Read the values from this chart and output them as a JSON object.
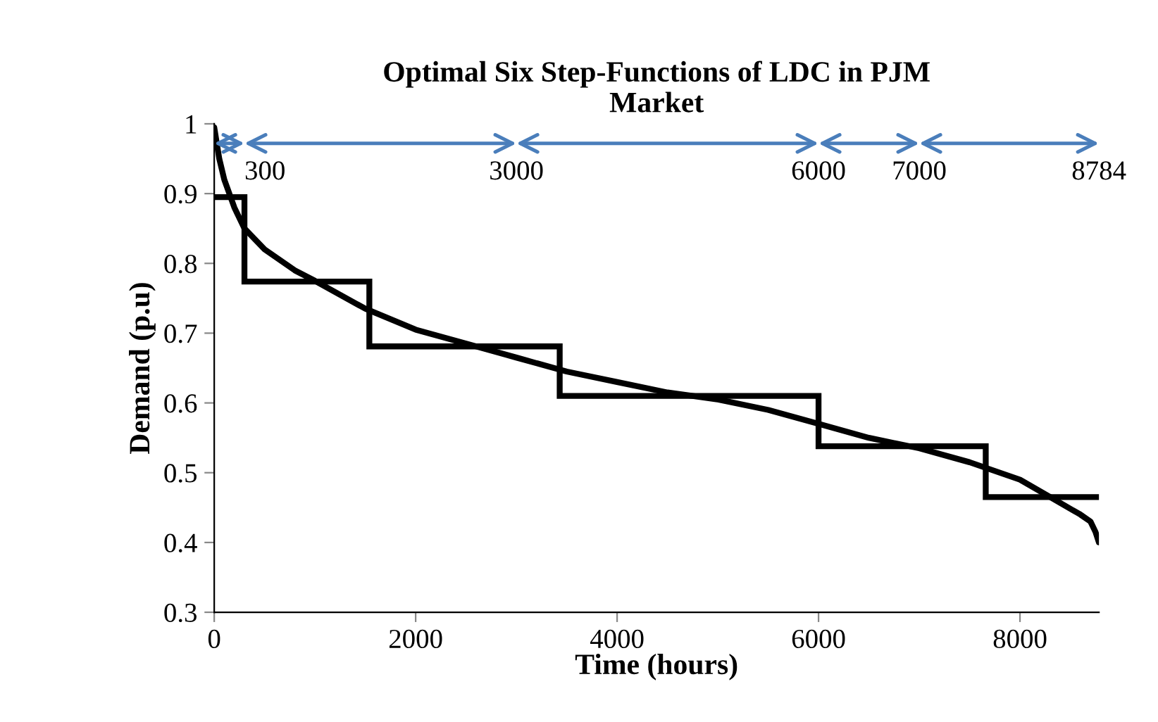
{
  "chart_data": {
    "type": "line",
    "title": "Optimal Six Step-Functions of LDC in PJM\nMarket",
    "xlabel": "Time (hours)",
    "ylabel": "Demand (p.u)",
    "xlim": [
      0,
      8784
    ],
    "xticks": [
      0,
      2000,
      4000,
      6000,
      8000
    ],
    "ylim": [
      0.3,
      1
    ],
    "yticks": [
      0.3,
      0.4,
      0.5,
      0.6,
      0.7,
      0.8,
      0.9,
      1
    ],
    "grid": false,
    "legend": false,
    "series": [
      {
        "color": "#000000",
        "x": [
          0,
          50,
          100,
          200,
          300,
          500,
          800,
          1000,
          1500,
          2000,
          2500,
          3000,
          3500,
          4000,
          4500,
          5000,
          5500,
          6000,
          6500,
          7000,
          7500,
          8000,
          8300,
          8600,
          8700,
          8750,
          8784
        ],
        "values": [
          0.995,
          0.95,
          0.92,
          0.88,
          0.85,
          0.82,
          0.79,
          0.775,
          0.735,
          0.705,
          0.685,
          0.665,
          0.645,
          0.63,
          0.615,
          0.605,
          0.59,
          0.57,
          0.55,
          0.535,
          0.515,
          0.49,
          0.465,
          0.44,
          0.43,
          0.415,
          0.4
        ]
      },
      {
        "type": "step",
        "color": "#000000",
        "x": [
          0,
          300,
          1540,
          3430,
          6000,
          7660,
          8784
        ],
        "values": [
          0.895,
          0.774,
          0.681,
          0.61,
          0.538,
          0.465,
          0.465
        ]
      }
    ],
    "annotations": [
      "300",
      "3000",
      "6000",
      "7000",
      "8784"
    ]
  }
}
